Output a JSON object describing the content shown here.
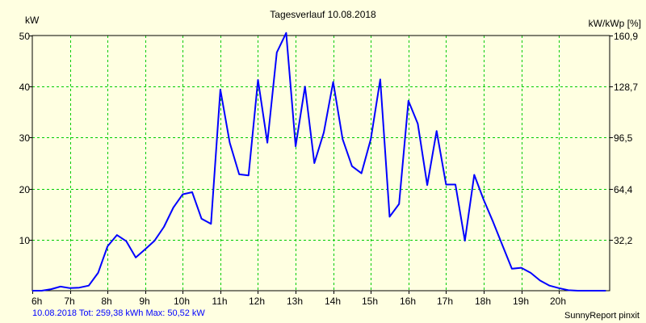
{
  "chart_data": {
    "type": "line",
    "title": "Tagesverlauf 10.08.2018",
    "ylabel_left": "kW",
    "ylabel_right": "kW/kWp [%]",
    "ylim": [
      0,
      50
    ],
    "y_ticks_left": [
      "50",
      "40",
      "30",
      "20",
      "10"
    ],
    "y_tick_values_left": [
      50,
      40,
      30,
      20,
      10
    ],
    "y_ticks_right": [
      "160,9",
      "128,7",
      "96,5",
      "64,4",
      "32,2"
    ],
    "xlim": [
      6,
      21.35
    ],
    "x_ticks": [
      "6h",
      "7h",
      "8h",
      "9h",
      "10h",
      "11h",
      "12h",
      "13h",
      "14h",
      "15h",
      "16h",
      "17h",
      "18h",
      "19h",
      "20h"
    ],
    "x_tick_values": [
      6,
      7,
      8,
      9,
      10,
      11,
      12,
      13,
      14,
      15,
      16,
      17,
      18,
      19,
      20
    ],
    "grid": true,
    "colors": {
      "background": "#ffffe1",
      "grid": "#00cc00",
      "line": "#0000ff",
      "frame": "#000000"
    },
    "series": [
      {
        "name": "kW",
        "x": [
          6.0,
          6.25,
          6.5,
          6.75,
          7.0,
          7.25,
          7.5,
          7.75,
          8.0,
          8.25,
          8.5,
          8.75,
          9.0,
          9.25,
          9.5,
          9.75,
          10.0,
          10.25,
          10.5,
          10.75,
          11.0,
          11.25,
          11.5,
          11.75,
          12.0,
          12.25,
          12.5,
          12.75,
          13.0,
          13.25,
          13.5,
          13.75,
          14.0,
          14.25,
          14.5,
          14.75,
          15.0,
          15.25,
          15.5,
          15.75,
          16.0,
          16.25,
          16.5,
          16.75,
          17.0,
          17.25,
          17.5,
          17.75,
          18.0,
          18.25,
          18.5,
          18.75,
          19.0,
          19.25,
          19.5,
          19.75,
          20.0,
          20.25,
          20.5,
          20.75,
          21.0,
          21.25
        ],
        "values": [
          0,
          0,
          0.3,
          0.8,
          0.5,
          0.6,
          1.0,
          3.5,
          8.7,
          10.9,
          9.7,
          6.5,
          8.1,
          9.8,
          12.5,
          16.3,
          18.9,
          19.3,
          14.1,
          13.1,
          39.4,
          29.0,
          22.8,
          22.6,
          41.3,
          29.0,
          46.7,
          50.5,
          28.3,
          40.0,
          25.0,
          31.0,
          40.9,
          29.7,
          24.4,
          23.0,
          29.7,
          41.4,
          14.5,
          17.0,
          37.2,
          32.7,
          20.7,
          31.3,
          20.8,
          20.8,
          9.8,
          22.7,
          17.8,
          13.5,
          8.9,
          4.3,
          4.5,
          3.5,
          2.0,
          1.0,
          0.5,
          0.1,
          0,
          0,
          0,
          0
        ]
      }
    ]
  },
  "footer": {
    "stats": "10.08.2018 Tot: 259,38 kWh Max: 50,52 kW",
    "credit": "SunnyReport pinxit"
  }
}
